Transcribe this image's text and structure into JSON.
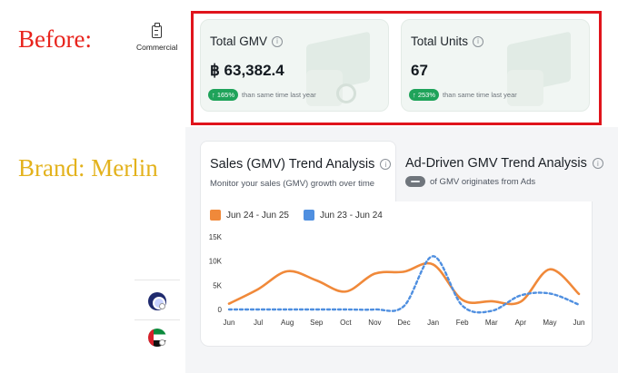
{
  "annotations": {
    "before": "Before:",
    "brand": "Brand: Merlin"
  },
  "rail": {
    "commercial_label": "Commercial"
  },
  "stats": [
    {
      "title": "Total GMV",
      "value": "฿ 63,382.4",
      "badge": "↑ 165%",
      "note": "than same time last year"
    },
    {
      "title": "Total Units",
      "value": "67",
      "badge": "↑ 253%",
      "note": "than same time last year"
    }
  ],
  "tabs": {
    "sales": {
      "title": "Sales (GMV) Trend Analysis",
      "subtitle": "Monitor your sales (GMV) growth over time"
    },
    "ad": {
      "title": "Ad-Driven GMV Trend Analysis",
      "subtitle": "of GMV originates from Ads"
    }
  },
  "colors": {
    "current": "#f0893a",
    "previous": "#4f8fe0",
    "highlight": "#e0141c",
    "positive": "#1fa35a"
  },
  "chart_data": {
    "type": "line",
    "x": [
      "Jun",
      "Jul",
      "Aug",
      "Sep",
      "Oct",
      "Nov",
      "Dec",
      "Jan",
      "Feb",
      "Mar",
      "Apr",
      "May",
      "Jun"
    ],
    "yticks": [
      "0",
      "5K",
      "10K",
      "15K"
    ],
    "ylim": [
      0,
      15000
    ],
    "grid": false,
    "legend_position": "top-left",
    "series": [
      {
        "name": "Jun 24 - Jun 25",
        "style": "solid",
        "values": [
          1200,
          4200,
          7900,
          6000,
          3700,
          7400,
          7800,
          9300,
          2000,
          1700,
          1600,
          8300,
          3200
        ]
      },
      {
        "name": "Jun 23 - Jun 24",
        "style": "dashed",
        "values": [
          0,
          0,
          0,
          0,
          0,
          0,
          700,
          11000,
          800,
          -300,
          2900,
          3300,
          1000
        ]
      }
    ]
  }
}
